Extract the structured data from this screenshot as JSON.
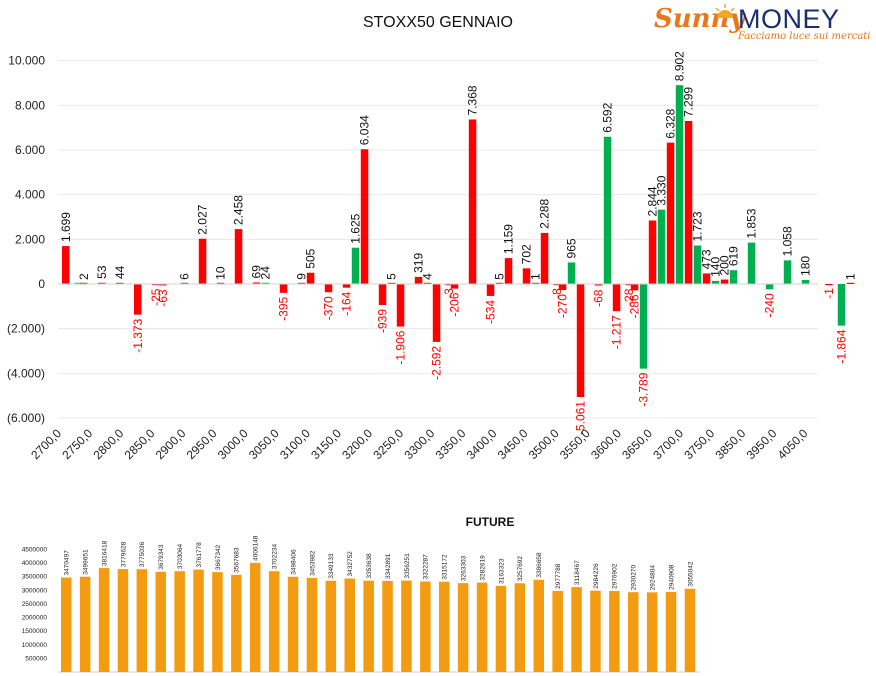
{
  "logo": {
    "brand_first": "Sunny",
    "brand_second": "MONEY",
    "tagline": "Facciamo luce sui mercati"
  },
  "colors": {
    "put": "#ff0000",
    "call": "#00b050",
    "future": "#f39c12",
    "grid": "#e8e8e8"
  },
  "chart_data": [
    {
      "type": "bar",
      "title": "STOXX50 GENNAIO",
      "xlabel": "",
      "ylabel": "",
      "ylim": [
        -6000,
        10000
      ],
      "y_ticks": [
        -6000,
        -4000,
        -2000,
        0,
        2000,
        4000,
        6000,
        8000,
        10000
      ],
      "y_tick_labels": [
        "(6.000)",
        "(4.000)",
        "(2.000)",
        "0",
        "2.000",
        "4.000",
        "6.000",
        "8.000",
        "10.000"
      ],
      "x_tick_labels": [
        "2700,0",
        "2750,0",
        "2800,0",
        "2850,0",
        "2900,0",
        "2950,0",
        "3000,0",
        "3050,0",
        "3100,0",
        "3150,0",
        "3200,0",
        "3250,0",
        "3300,0",
        "3350,0",
        "3400,0",
        "3450,0",
        "3500,0",
        "3550,0",
        "3600,0",
        "3650,0",
        "3700,0",
        "3750,0",
        "3850,0",
        "3950,0",
        "4050,0"
      ],
      "grid": true,
      "bars": [
        {
          "pos": 0,
          "value": 1699,
          "label": "1.699",
          "series": "red"
        },
        {
          "pos": 0.7,
          "value": 0,
          "label": "",
          "series": "green"
        },
        {
          "pos": 1,
          "value": 2,
          "label": "2",
          "series": "red"
        },
        {
          "pos": 2,
          "value": 53,
          "label": "53",
          "series": "red"
        },
        {
          "pos": 3,
          "value": 44,
          "label": "44",
          "series": "red"
        },
        {
          "pos": 4,
          "value": -1373,
          "label": "-1.373",
          "series": "red"
        },
        {
          "pos": 5,
          "value": -25,
          "label": "-25",
          "series": "red"
        },
        {
          "pos": 5.4,
          "value": -63,
          "label": "-63",
          "series": "red"
        },
        {
          "pos": 6.6,
          "value": 6,
          "label": "6",
          "series": "red"
        },
        {
          "pos": 7.6,
          "value": 2027,
          "label": "2.027",
          "series": "red"
        },
        {
          "pos": 8.6,
          "value": 10,
          "label": "10",
          "series": "red"
        },
        {
          "pos": 9.6,
          "value": 2458,
          "label": "2.458",
          "series": "red"
        },
        {
          "pos": 10.6,
          "value": 69,
          "label": "69",
          "series": "red"
        },
        {
          "pos": 11.1,
          "value": 24,
          "label": "24",
          "series": "green"
        },
        {
          "pos": 12.1,
          "value": -395,
          "label": "-395",
          "series": "red"
        },
        {
          "pos": 13.1,
          "value": 9,
          "label": "9",
          "series": "red"
        },
        {
          "pos": 13.6,
          "value": 505,
          "label": "505",
          "series": "red"
        },
        {
          "pos": 14.6,
          "value": -370,
          "label": "-370",
          "series": "red"
        },
        {
          "pos": 15.6,
          "value": -164,
          "label": "-164",
          "series": "red"
        },
        {
          "pos": 16.1,
          "value": 1625,
          "label": "1.625",
          "series": "green"
        },
        {
          "pos": 16.6,
          "value": 6034,
          "label": "6.034",
          "series": "red"
        },
        {
          "pos": 17.6,
          "value": -939,
          "label": "-939",
          "series": "red"
        },
        {
          "pos": 18.1,
          "value": 5,
          "label": "5",
          "series": "red"
        },
        {
          "pos": 18.6,
          "value": -1906,
          "label": "-1.906",
          "series": "red"
        },
        {
          "pos": 19.6,
          "value": 319,
          "label": "319",
          "series": "red"
        },
        {
          "pos": 20.1,
          "value": 4,
          "label": "4",
          "series": "red"
        },
        {
          "pos": 20.6,
          "value": -2592,
          "label": "-2.592",
          "series": "red"
        },
        {
          "pos": 21.3,
          "value": -3,
          "label": "-3",
          "series": "red"
        },
        {
          "pos": 21.6,
          "value": -206,
          "label": "-206",
          "series": "red"
        },
        {
          "pos": 22.6,
          "value": 7368,
          "label": "7.368",
          "series": "red"
        },
        {
          "pos": 23.6,
          "value": -534,
          "label": "-534",
          "series": "red"
        },
        {
          "pos": 24.1,
          "value": 5,
          "label": "5",
          "series": "red"
        },
        {
          "pos": 24.6,
          "value": 1159,
          "label": "1.159",
          "series": "red"
        },
        {
          "pos": 25.6,
          "value": 702,
          "label": "702",
          "series": "red"
        },
        {
          "pos": 26.1,
          "value": 1,
          "label": "1",
          "series": "red"
        },
        {
          "pos": 26.6,
          "value": 2288,
          "label": "2.288",
          "series": "red"
        },
        {
          "pos": 27.3,
          "value": -8,
          "label": "-8",
          "series": "red"
        },
        {
          "pos": 27.6,
          "value": -270,
          "label": "-270",
          "series": "red"
        },
        {
          "pos": 28.1,
          "value": 965,
          "label": "965",
          "series": "green"
        },
        {
          "pos": 28.6,
          "value": -5061,
          "label": "-5.061",
          "series": "red"
        },
        {
          "pos": 29.6,
          "value": -68,
          "label": "-68",
          "series": "red"
        },
        {
          "pos": 30.1,
          "value": 6592,
          "label": "6.592",
          "series": "green"
        },
        {
          "pos": 30.6,
          "value": -1217,
          "label": "-1.217",
          "series": "red"
        },
        {
          "pos": 31.3,
          "value": -28,
          "label": "-28",
          "series": "red"
        },
        {
          "pos": 31.6,
          "value": -286,
          "label": "-286",
          "series": "red"
        },
        {
          "pos": 32.1,
          "value": -3789,
          "label": "-3.789",
          "series": "green"
        },
        {
          "pos": 32.6,
          "value": 2844,
          "label": "2.844",
          "series": "red"
        },
        {
          "pos": 33.1,
          "value": 3330,
          "label": "3.330",
          "series": "green"
        },
        {
          "pos": 33.6,
          "value": 6328,
          "label": "6.328",
          "series": "red"
        },
        {
          "pos": 34.1,
          "value": 8902,
          "label": "8.902",
          "series": "green"
        },
        {
          "pos": 34.6,
          "value": 7299,
          "label": "7.299",
          "series": "red"
        },
        {
          "pos": 35.1,
          "value": 1723,
          "label": "1.723",
          "series": "green"
        },
        {
          "pos": 35.6,
          "value": 473,
          "label": "473",
          "series": "red"
        },
        {
          "pos": 36.1,
          "value": 140,
          "label": "140",
          "series": "green"
        },
        {
          "pos": 36.6,
          "value": 200,
          "label": "200",
          "series": "red"
        },
        {
          "pos": 37.1,
          "value": 619,
          "label": "619",
          "series": "green"
        },
        {
          "pos": 38.1,
          "value": 1853,
          "label": "1.853",
          "series": "green"
        },
        {
          "pos": 39.1,
          "value": -240,
          "label": "-240",
          "series": "green"
        },
        {
          "pos": 40.1,
          "value": 1058,
          "label": "1.058",
          "series": "green"
        },
        {
          "pos": 41.1,
          "value": 180,
          "label": "180",
          "series": "green"
        },
        {
          "pos": 42.4,
          "value": -1,
          "label": "-1",
          "series": "red"
        },
        {
          "pos": 43.1,
          "value": -1864,
          "label": "-1.864",
          "series": "green"
        },
        {
          "pos": 43.6,
          "value": 1,
          "label": "1",
          "series": "red"
        }
      ]
    },
    {
      "type": "bar",
      "title": "FUTURE",
      "ylim": [
        0,
        4700000
      ],
      "y_ticks": [
        500000,
        1000000,
        1500000,
        2000000,
        2500000,
        3000000,
        3500000,
        4000000,
        4500000
      ],
      "y_tick_labels": [
        "500000",
        "1000000",
        "1500000",
        "2000000",
        "2500000",
        "3000000",
        "3500000",
        "4000000",
        "4500000"
      ],
      "values": [
        3470497,
        3499651,
        3816418,
        3779628,
        3775036,
        3679343,
        3703064,
        3761778,
        3667342,
        3567683,
        4006148,
        3702234,
        3498406,
        3453982,
        3349133,
        3432752,
        3353638,
        3342891,
        3356251,
        3322287,
        3315172,
        3263303,
        3282619,
        3163323,
        3257692,
        3386658,
        2977788,
        3118467,
        2984226,
        2976902,
        2930270,
        2924804,
        2940908,
        3055042
      ]
    }
  ]
}
